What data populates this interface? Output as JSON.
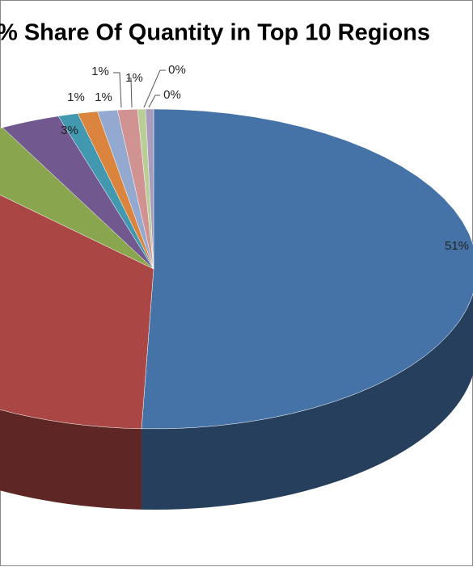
{
  "chart_data": {
    "type": "pie",
    "title": "% Share Of Quantity in Top 10 Regions",
    "values": [
      51,
      37,
      5,
      3,
      1,
      1,
      1,
      1,
      0.4,
      0.4
    ],
    "value_labels": [
      "51%",
      null,
      null,
      "3%",
      "1%",
      "1%",
      "1%",
      "1%",
      "0%",
      "0%"
    ],
    "colors": [
      "#4572a7",
      "#aa4643",
      "#89a54e",
      "#71588f",
      "#4198af",
      "#db843d",
      "#93a9cf",
      "#d19392",
      "#b9cd96",
      "#a99bbd"
    ]
  }
}
